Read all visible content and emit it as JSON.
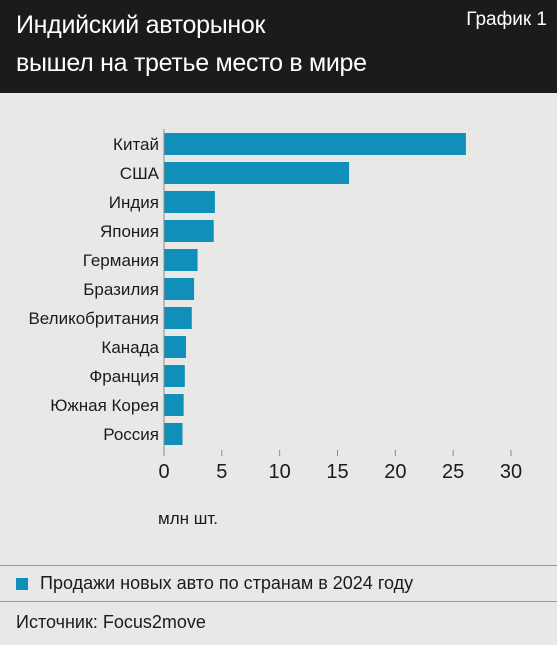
{
  "header": {
    "title_line1": "Индийский авторынок",
    "title_line2": "вышел на третье место в мире",
    "tag": "График 1"
  },
  "chart_data": {
    "type": "bar",
    "orientation": "horizontal",
    "categories": [
      "Китай",
      "США",
      "Индия",
      "Япония",
      "Германия",
      "Бразилия",
      "Великобритания",
      "Канада",
      "Франция",
      "Южная Корея",
      "Россия"
    ],
    "series": [
      {
        "name": "Продажи новых авто по странам в 2024 году",
        "values": [
          26.1,
          16.0,
          4.4,
          4.3,
          2.9,
          2.6,
          2.4,
          1.9,
          1.8,
          1.7,
          1.6
        ]
      }
    ],
    "xlabel": "млн шт.",
    "xlim": [
      0,
      30
    ],
    "xticks": [
      0,
      5,
      10,
      15,
      20,
      25,
      30
    ],
    "grid": false,
    "legend": "bottom",
    "bar_color": "#0f8fba"
  },
  "legend": {
    "label": "Продажи новых авто по странам в 2024 году"
  },
  "source": {
    "text": "Источник: Focus2move"
  }
}
